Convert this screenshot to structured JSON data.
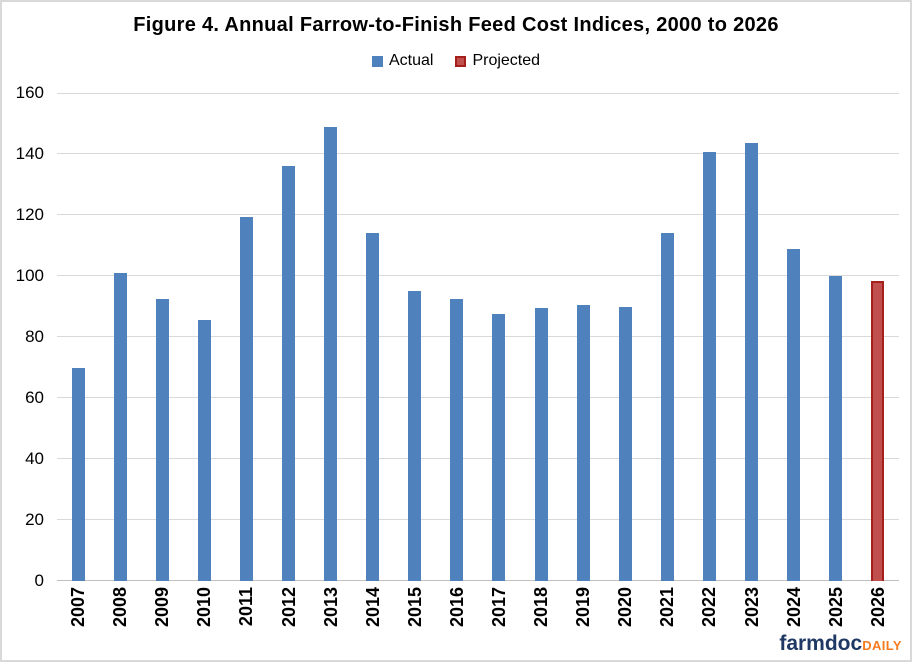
{
  "branding": {
    "farmdoc": "farmdoc",
    "daily": "DAILY",
    "farmdoc_color": "#1F3864",
    "daily_color": "#F47B20"
  },
  "colors": {
    "gridline": "#D9D9D9",
    "baseline": "#BFBFBF",
    "frame_border": "#D9D9D9",
    "text": "#000000"
  },
  "chart_data": {
    "type": "bar",
    "title": "Figure 4. Annual Farrow-to-Finish Feed Cost Indices, 2000 to 2026",
    "xlabel": "",
    "ylabel": "",
    "grid": true,
    "legend_position": "top",
    "ylim": [
      0,
      160
    ],
    "yticks": [
      0,
      20,
      40,
      60,
      80,
      100,
      120,
      140,
      160
    ],
    "categories": [
      "2007",
      "2008",
      "2009",
      "2010",
      "2011",
      "2012",
      "2013",
      "2014",
      "2015",
      "2016",
      "2017",
      "2018",
      "2019",
      "2020",
      "2021",
      "2022",
      "2023",
      "2024",
      "2025",
      "2026"
    ],
    "series": [
      {
        "name": "Actual",
        "color": "#4F81BD",
        "values": [
          70,
          101,
          92.5,
          85.5,
          119.5,
          136,
          149,
          114,
          95,
          92.5,
          87.5,
          89.5,
          90.5,
          90,
          114,
          140.5,
          143.5,
          109,
          100,
          null
        ]
      },
      {
        "name": "Projected",
        "color": "#C0504D",
        "border_color": "#A5201C",
        "values": [
          null,
          null,
          null,
          null,
          null,
          null,
          null,
          null,
          null,
          null,
          null,
          null,
          null,
          null,
          null,
          null,
          null,
          null,
          null,
          98.5
        ]
      }
    ]
  }
}
